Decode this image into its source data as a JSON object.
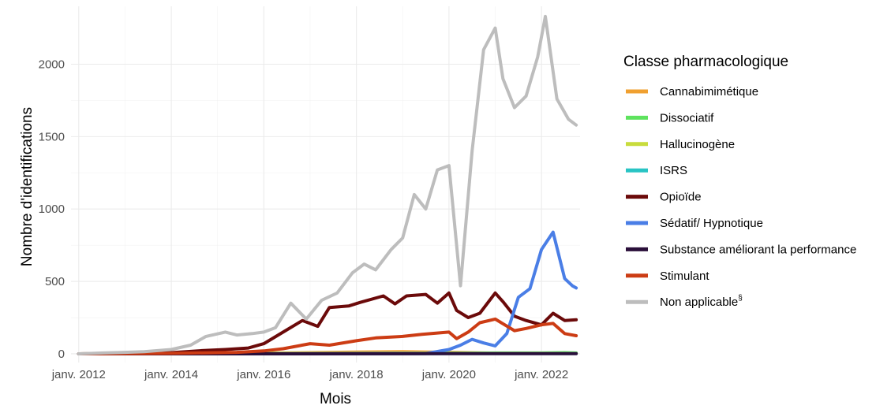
{
  "chart_data": {
    "type": "line",
    "xlabel": "Mois",
    "ylabel": "Nombre d'identifications",
    "legend_title": "Classe pharmacologique",
    "legend_position": "right",
    "grid": true,
    "xlim": [
      "2011-11",
      "2022-11"
    ],
    "ylim": [
      -60,
      2400
    ],
    "x_ticks": [
      {
        "date": "2012-01",
        "label": "janv. 2012"
      },
      {
        "date": "2014-01",
        "label": "janv. 2014"
      },
      {
        "date": "2016-01",
        "label": "janv. 2016"
      },
      {
        "date": "2018-01",
        "label": "janv. 2018"
      },
      {
        "date": "2020-01",
        "label": "janv. 2020"
      },
      {
        "date": "2022-01",
        "label": "janv. 2022"
      }
    ],
    "y_ticks": [
      0,
      500,
      1000,
      1500,
      2000
    ],
    "series": [
      {
        "name": "Cannabimimétique",
        "color": "#f0a030",
        "points": [
          [
            "2012-01",
            0
          ],
          [
            "2014-01",
            8
          ],
          [
            "2016-01",
            5
          ],
          [
            "2018-01",
            12
          ],
          [
            "2019-01",
            15
          ],
          [
            "2020-01",
            10
          ],
          [
            "2021-01",
            5
          ],
          [
            "2022-01",
            4
          ],
          [
            "2022-10",
            3
          ]
        ]
      },
      {
        "name": "Dissociatif",
        "color": "#5ee35e",
        "points": [
          [
            "2012-01",
            0
          ],
          [
            "2016-01",
            2
          ],
          [
            "2019-01",
            4
          ],
          [
            "2020-01",
            5
          ],
          [
            "2021-01",
            6
          ],
          [
            "2022-01",
            6
          ],
          [
            "2022-07",
            8
          ],
          [
            "2022-10",
            6
          ]
        ]
      },
      {
        "name": "Hallucinogène",
        "color": "#c8dc3c",
        "points": [
          [
            "2012-01",
            0
          ],
          [
            "2016-01",
            1
          ],
          [
            "2019-01",
            3
          ],
          [
            "2020-01",
            4
          ],
          [
            "2021-01",
            4
          ],
          [
            "2022-01",
            4
          ],
          [
            "2022-10",
            3
          ]
        ]
      },
      {
        "name": "ISRS",
        "color": "#28c4c4",
        "points": [
          [
            "2012-01",
            0
          ],
          [
            "2018-01",
            1
          ],
          [
            "2020-01",
            2
          ],
          [
            "2022-01",
            2
          ],
          [
            "2022-10",
            2
          ]
        ]
      },
      {
        "name": "Opioïde",
        "color": "#6b0a0a",
        "points": [
          [
            "2012-01",
            0
          ],
          [
            "2013-01",
            3
          ],
          [
            "2014-01",
            8
          ],
          [
            "2014-09",
            22
          ],
          [
            "2015-03",
            30
          ],
          [
            "2015-09",
            40
          ],
          [
            "2016-01",
            70
          ],
          [
            "2016-06",
            150
          ],
          [
            "2016-11",
            230
          ],
          [
            "2017-03",
            190
          ],
          [
            "2017-06",
            320
          ],
          [
            "2017-11",
            330
          ],
          [
            "2018-02",
            355
          ],
          [
            "2018-08",
            400
          ],
          [
            "2018-11",
            345
          ],
          [
            "2019-02",
            400
          ],
          [
            "2019-07",
            410
          ],
          [
            "2019-10",
            350
          ],
          [
            "2020-01",
            420
          ],
          [
            "2020-03",
            300
          ],
          [
            "2020-06",
            250
          ],
          [
            "2020-09",
            280
          ],
          [
            "2021-01",
            420
          ],
          [
            "2021-03",
            360
          ],
          [
            "2021-06",
            260
          ],
          [
            "2021-09",
            230
          ],
          [
            "2022-01",
            200
          ],
          [
            "2022-04",
            280
          ],
          [
            "2022-07",
            230
          ],
          [
            "2022-10",
            235
          ]
        ]
      },
      {
        "name": "Sédatif/ Hypnotique",
        "color": "#4a7ee6",
        "points": [
          [
            "2012-01",
            0
          ],
          [
            "2016-01",
            0
          ],
          [
            "2018-01",
            1
          ],
          [
            "2019-07",
            2
          ],
          [
            "2020-01",
            30
          ],
          [
            "2020-04",
            60
          ],
          [
            "2020-07",
            100
          ],
          [
            "2020-10",
            75
          ],
          [
            "2021-01",
            55
          ],
          [
            "2021-04",
            140
          ],
          [
            "2021-07",
            390
          ],
          [
            "2021-10",
            450
          ],
          [
            "2022-01",
            720
          ],
          [
            "2022-04",
            840
          ],
          [
            "2022-07",
            520
          ],
          [
            "2022-09",
            470
          ],
          [
            "2022-10",
            455
          ]
        ]
      },
      {
        "name": "Substance améliorant la performance",
        "color": "#2a0f3a",
        "points": [
          [
            "2012-01",
            0
          ],
          [
            "2016-01",
            0
          ],
          [
            "2020-01",
            1
          ],
          [
            "2022-10",
            1
          ]
        ]
      },
      {
        "name": "Stimulant",
        "color": "#cc3c14",
        "points": [
          [
            "2012-01",
            0
          ],
          [
            "2014-01",
            3
          ],
          [
            "2015-06",
            10
          ],
          [
            "2016-01",
            20
          ],
          [
            "2016-06",
            35
          ],
          [
            "2017-01",
            70
          ],
          [
            "2017-06",
            60
          ],
          [
            "2018-01",
            90
          ],
          [
            "2018-06",
            110
          ],
          [
            "2019-01",
            120
          ],
          [
            "2019-06",
            135
          ],
          [
            "2020-01",
            150
          ],
          [
            "2020-03",
            105
          ],
          [
            "2020-06",
            150
          ],
          [
            "2020-09",
            215
          ],
          [
            "2021-01",
            240
          ],
          [
            "2021-06",
            160
          ],
          [
            "2021-09",
            175
          ],
          [
            "2022-01",
            200
          ],
          [
            "2022-04",
            210
          ],
          [
            "2022-07",
            140
          ],
          [
            "2022-10",
            125
          ]
        ]
      },
      {
        "name": "Non applicable",
        "name_superscript": "§",
        "color": "#bdbdbd",
        "points": [
          [
            "2012-01",
            0
          ],
          [
            "2012-06",
            5
          ],
          [
            "2013-01",
            10
          ],
          [
            "2013-06",
            15
          ],
          [
            "2014-01",
            30
          ],
          [
            "2014-06",
            60
          ],
          [
            "2014-10",
            120
          ],
          [
            "2015-03",
            150
          ],
          [
            "2015-06",
            130
          ],
          [
            "2015-10",
            140
          ],
          [
            "2016-01",
            150
          ],
          [
            "2016-04",
            180
          ],
          [
            "2016-08",
            350
          ],
          [
            "2016-12",
            240
          ],
          [
            "2017-04",
            370
          ],
          [
            "2017-08",
            420
          ],
          [
            "2017-12",
            560
          ],
          [
            "2018-03",
            620
          ],
          [
            "2018-06",
            580
          ],
          [
            "2018-10",
            720
          ],
          [
            "2019-01",
            800
          ],
          [
            "2019-04",
            1100
          ],
          [
            "2019-07",
            1000
          ],
          [
            "2019-10",
            1270
          ],
          [
            "2020-01",
            1300
          ],
          [
            "2020-04",
            470
          ],
          [
            "2020-07",
            1400
          ],
          [
            "2020-10",
            2100
          ],
          [
            "2021-01",
            2250
          ],
          [
            "2021-03",
            1900
          ],
          [
            "2021-06",
            1700
          ],
          [
            "2021-09",
            1780
          ],
          [
            "2021-12",
            2050
          ],
          [
            "2022-02",
            2330
          ],
          [
            "2022-05",
            1760
          ],
          [
            "2022-08",
            1620
          ],
          [
            "2022-10",
            1580
          ]
        ]
      }
    ]
  }
}
